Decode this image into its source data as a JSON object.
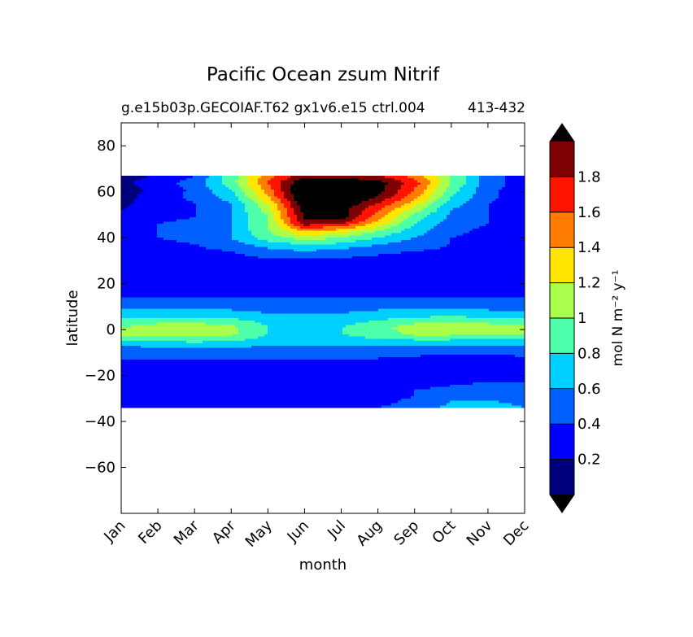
{
  "chart_data": {
    "type": "contour",
    "title": "Pacific Ocean zsum Nitrif",
    "subtitle": "g.e15b03p.GECOIAF.T62 gx1v6.e15 ctrl.004",
    "subtitle_right": "413-432",
    "xlabel": "month",
    "ylabel": "latitude",
    "x_ticks": [
      "Jan",
      "Feb",
      "Mar",
      "Apr",
      "May",
      "Jun",
      "Jul",
      "Aug",
      "Sep",
      "Oct",
      "Nov",
      "Dec"
    ],
    "xlim": [
      0,
      11
    ],
    "y_ticks": [
      80,
      60,
      40,
      20,
      0,
      -20,
      -40,
      -60
    ],
    "ylim": [
      -80,
      90
    ],
    "data_lat_range": [
      -34,
      67
    ],
    "colorbar": {
      "label": "mol N m⁻² y⁻¹",
      "levels": [
        0,
        0.2,
        0.4,
        0.6,
        0.8,
        1.0,
        1.2,
        1.4,
        1.6,
        1.8,
        2.0
      ],
      "tick_labels": [
        "0.2",
        "0.4",
        "0.6",
        "0.8",
        "1",
        "1.2",
        "1.4",
        "1.6",
        "1.8"
      ],
      "colors": [
        "#00007f",
        "#0000ff",
        "#0060ff",
        "#00d0ff",
        "#4dffaa",
        "#aaff4d",
        "#ffe500",
        "#ff7c00",
        "#ff1400",
        "#7f0000"
      ],
      "under_color": "#000000",
      "over_color": "#000000",
      "extend": "both"
    },
    "field": {
      "lat": [
        67,
        64,
        61,
        58,
        55,
        52,
        49,
        46,
        43,
        40,
        37,
        34,
        31,
        28,
        25,
        22,
        19,
        16,
        13,
        10,
        7,
        4,
        1,
        -2,
        -5,
        -8,
        -11,
        -14,
        -17,
        -20,
        -23,
        -26,
        -29,
        -32,
        -34
      ],
      "rows": [
        [
          0.15,
          0.2,
          0.4,
          0.9,
          1.5,
          1.9,
          1.9,
          1.8,
          1.5,
          1.0,
          0.5,
          0.3
        ],
        [
          0.15,
          0.3,
          0.5,
          0.9,
          1.6,
          2.2,
          2.2,
          2.1,
          1.7,
          1.0,
          0.5,
          0.3
        ],
        [
          0.12,
          0.25,
          0.45,
          0.8,
          1.5,
          2.3,
          2.3,
          2.1,
          1.6,
          0.9,
          0.45,
          0.3
        ],
        [
          0.12,
          0.3,
          0.45,
          0.7,
          1.4,
          2.3,
          2.3,
          2.0,
          1.5,
          0.8,
          0.45,
          0.3
        ],
        [
          0.15,
          0.3,
          0.4,
          0.6,
          1.2,
          2.2,
          2.2,
          1.8,
          1.3,
          0.7,
          0.4,
          0.3
        ],
        [
          0.2,
          0.3,
          0.4,
          0.6,
          1.1,
          2.1,
          2.1,
          1.6,
          1.1,
          0.6,
          0.4,
          0.3
        ],
        [
          0.3,
          0.35,
          0.4,
          0.6,
          1.0,
          2.05,
          2.1,
          1.5,
          0.9,
          0.55,
          0.4,
          0.3
        ],
        [
          0.35,
          0.4,
          0.45,
          0.6,
          1.0,
          1.9,
          1.8,
          1.3,
          0.8,
          0.5,
          0.4,
          0.3
        ],
        [
          0.35,
          0.4,
          0.45,
          0.6,
          1.0,
          1.4,
          1.3,
          1.0,
          0.7,
          0.45,
          0.35,
          0.3
        ],
        [
          0.35,
          0.4,
          0.45,
          0.6,
          0.9,
          1.1,
          1.0,
          0.8,
          0.6,
          0.4,
          0.35,
          0.3
        ],
        [
          0.3,
          0.35,
          0.4,
          0.5,
          0.7,
          0.8,
          0.75,
          0.6,
          0.5,
          0.4,
          0.35,
          0.3
        ],
        [
          0.3,
          0.3,
          0.35,
          0.4,
          0.5,
          0.6,
          0.5,
          0.45,
          0.4,
          0.35,
          0.3,
          0.3
        ],
        [
          0.25,
          0.25,
          0.3,
          0.35,
          0.4,
          0.42,
          0.4,
          0.35,
          0.3,
          0.3,
          0.25,
          0.25
        ],
        [
          0.25,
          0.25,
          0.25,
          0.3,
          0.3,
          0.3,
          0.3,
          0.3,
          0.25,
          0.25,
          0.25,
          0.25
        ],
        [
          0.25,
          0.25,
          0.25,
          0.25,
          0.25,
          0.25,
          0.25,
          0.25,
          0.25,
          0.25,
          0.25,
          0.25
        ],
        [
          0.25,
          0.25,
          0.25,
          0.25,
          0.25,
          0.25,
          0.25,
          0.25,
          0.25,
          0.25,
          0.25,
          0.25
        ],
        [
          0.25,
          0.25,
          0.25,
          0.25,
          0.25,
          0.25,
          0.25,
          0.25,
          0.25,
          0.25,
          0.25,
          0.25
        ],
        [
          0.3,
          0.3,
          0.3,
          0.3,
          0.3,
          0.3,
          0.3,
          0.3,
          0.3,
          0.3,
          0.3,
          0.3
        ],
        [
          0.45,
          0.45,
          0.45,
          0.45,
          0.45,
          0.45,
          0.45,
          0.45,
          0.45,
          0.45,
          0.45,
          0.45
        ],
        [
          0.55,
          0.55,
          0.55,
          0.55,
          0.55,
          0.55,
          0.55,
          0.55,
          0.55,
          0.55,
          0.55,
          0.55
        ],
        [
          0.65,
          0.68,
          0.68,
          0.65,
          0.6,
          0.6,
          0.6,
          0.65,
          0.68,
          0.68,
          0.65,
          0.65
        ],
        [
          0.85,
          0.9,
          0.9,
          0.85,
          0.75,
          0.7,
          0.72,
          0.8,
          0.9,
          0.95,
          0.9,
          0.85
        ],
        [
          1.0,
          1.1,
          1.15,
          1.05,
          0.8,
          0.75,
          0.8,
          0.95,
          1.1,
          1.15,
          1.1,
          1.05
        ],
        [
          1.05,
          1.12,
          1.15,
          1.05,
          0.8,
          0.75,
          0.8,
          0.9,
          1.05,
          1.05,
          1.0,
          1.0
        ],
        [
          0.75,
          0.8,
          0.85,
          0.8,
          0.7,
          0.65,
          0.7,
          0.75,
          0.75,
          0.75,
          0.72,
          0.7
        ],
        [
          0.55,
          0.58,
          0.6,
          0.6,
          0.55,
          0.55,
          0.55,
          0.55,
          0.55,
          0.55,
          0.55,
          0.55
        ],
        [
          0.45,
          0.45,
          0.45,
          0.45,
          0.45,
          0.45,
          0.45,
          0.45,
          0.42,
          0.4,
          0.4,
          0.42
        ],
        [
          0.35,
          0.35,
          0.35,
          0.35,
          0.35,
          0.35,
          0.35,
          0.35,
          0.32,
          0.32,
          0.32,
          0.33
        ],
        [
          0.3,
          0.3,
          0.3,
          0.3,
          0.3,
          0.3,
          0.3,
          0.3,
          0.3,
          0.3,
          0.3,
          0.3
        ],
        [
          0.25,
          0.25,
          0.25,
          0.25,
          0.25,
          0.25,
          0.25,
          0.25,
          0.25,
          0.3,
          0.3,
          0.3
        ],
        [
          0.25,
          0.25,
          0.25,
          0.25,
          0.25,
          0.25,
          0.25,
          0.3,
          0.35,
          0.38,
          0.4,
          0.4
        ],
        [
          0.25,
          0.25,
          0.25,
          0.25,
          0.25,
          0.25,
          0.3,
          0.35,
          0.4,
          0.42,
          0.45,
          0.45
        ],
        [
          0.3,
          0.3,
          0.3,
          0.3,
          0.25,
          0.25,
          0.3,
          0.35,
          0.4,
          0.5,
          0.5,
          0.45
        ],
        [
          0.3,
          0.3,
          0.3,
          0.3,
          0.3,
          0.3,
          0.3,
          0.35,
          0.45,
          0.62,
          0.65,
          0.55
        ],
        [
          0.3,
          0.3,
          0.3,
          0.3,
          0.3,
          0.3,
          0.35,
          0.4,
          0.5,
          0.65,
          0.7,
          0.6
        ]
      ]
    }
  }
}
